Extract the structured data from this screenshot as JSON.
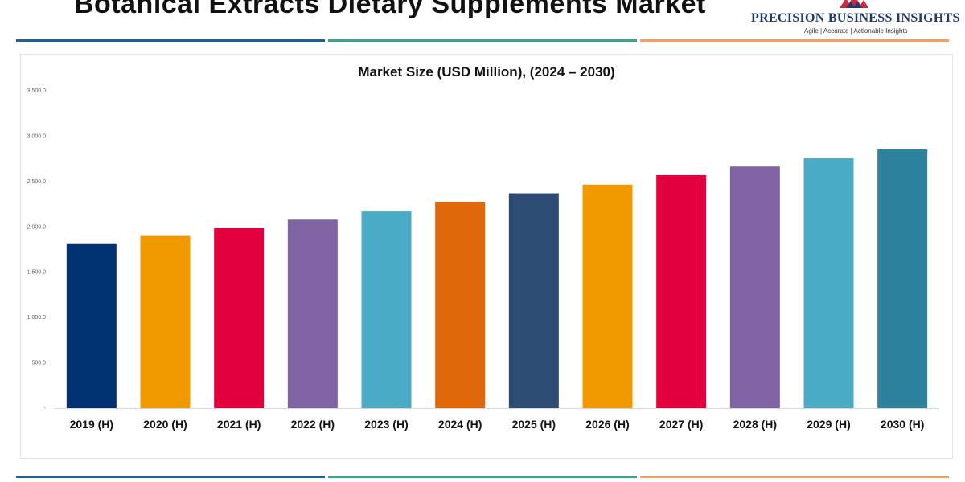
{
  "header": {
    "title": "Botanical Extracts Dietary Supplements Market",
    "logo": {
      "name": "PRECISION BUSINESS INSIGHTS",
      "tagline": "Agile | Accurate | Actionable Insights"
    },
    "divider_colors": [
      "#1f5f99",
      "#3aa58a",
      "#f0a060"
    ]
  },
  "chart_data": {
    "type": "bar",
    "title": "Market Size (USD Million), (2024 – 2030)",
    "xlabel": "",
    "ylabel": "",
    "categories": [
      "2019 (H)",
      "2020 (H)",
      "2021 (H)",
      "2022 (H)",
      "2023 (H)",
      "2024 (H)",
      "2025 (H)",
      "2026 (H)",
      "2027 (H)",
      "2028 (H)",
      "2029 (H)",
      "2030 (H)"
    ],
    "values": [
      1810,
      1900,
      1985,
      2080,
      2170,
      2275,
      2370,
      2465,
      2570,
      2665,
      2755,
      2855
    ],
    "colors": [
      "#003170",
      "#f29900",
      "#e4003f",
      "#7f63a2",
      "#4aabc6",
      "#e2690b",
      "#2c4c74",
      "#f29900",
      "#e4003f",
      "#7f63a2",
      "#4aabc6",
      "#2e839c"
    ],
    "ylim": [
      0,
      3500
    ],
    "yticks": [
      0,
      500,
      1000,
      1500,
      2000,
      2500,
      3000,
      3500
    ],
    "ytick_labels": [
      "-",
      "500.0",
      "1,000.0",
      "1,500.0",
      "2,000.0",
      "2,500.0",
      "3,000.0",
      "3,500.0"
    ],
    "grid": false,
    "legend": "none"
  }
}
